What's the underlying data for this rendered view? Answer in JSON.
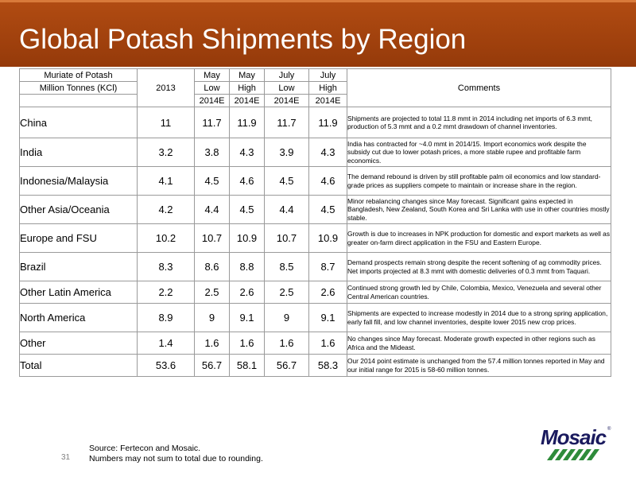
{
  "slide": {
    "title": "Global Potash Shipments by Region",
    "page_number": "31",
    "source_line": "Source:  Fertecon and Mosaic.",
    "note_line": "Numbers may not sum to total due to rounding.",
    "logo_text": "Mosaic",
    "logo_tm": "®"
  },
  "colors": {
    "header_bg": "#a2420e",
    "title_text": "#ffffff",
    "logo": "#1a1a5e",
    "logo_bars": "#2e8b3a"
  },
  "table": {
    "label1": "Muriate of Potash",
    "label2": "Million Tonnes (KCl)",
    "year_col": "2013",
    "comments_header": "Comments",
    "columns": [
      {
        "month": "May",
        "range": "Low",
        "est": "2014E"
      },
      {
        "month": "May",
        "range": "High",
        "est": "2014E"
      },
      {
        "month": "July",
        "range": "Low",
        "est": "2014E"
      },
      {
        "month": "July",
        "range": "High",
        "est": "2014E"
      }
    ],
    "rows": [
      {
        "region": "China",
        "v2013": "11",
        "v1": "11.7",
        "v2": "11.9",
        "v3": "11.7",
        "v4": "11.9",
        "comment": "Shipments are projected to total 11.8 mmt in 2014 including net imports of 6.3 mmt, production of 5.3 mmt and a 0.2 mmt drawdown of channel inventories."
      },
      {
        "region": "India",
        "v2013": "3.2",
        "v1": "3.8",
        "v2": "4.3",
        "v3": "3.9",
        "v4": "4.3",
        "comment": "India has contracted for ~4.0 mmt in 2014/15.  Import economics work despite the subsidy cut due to lower potash prices, a more stable rupee and profitable farm economics."
      },
      {
        "region": "Indonesia/Malaysia",
        "v2013": "4.1",
        "v1": "4.5",
        "v2": "4.6",
        "v3": "4.5",
        "v4": "4.6",
        "comment": "The demand rebound is driven by still profitable palm oil economics and low standard-grade prices as suppliers compete to maintain or increase share in the region."
      },
      {
        "region": "Other Asia/Oceania",
        "v2013": "4.2",
        "v1": "4.4",
        "v2": "4.5",
        "v3": "4.4",
        "v4": "4.5",
        "comment": "Minor rebalancing changes since May forecast.  Significant gains expected in Bangladesh, New Zealand, South Korea and Sri Lanka with use in other countries mostly stable."
      },
      {
        "region": "Europe and FSU",
        "v2013": "10.2",
        "v1": "10.7",
        "v2": "10.9",
        "v3": "10.7",
        "v4": "10.9",
        "comment": "Growth is due to increases in NPK production for domestic and export markets as well as greater on-farm direct application in the FSU and Eastern Europe."
      },
      {
        "region": "Brazil",
        "v2013": "8.3",
        "v1": "8.6",
        "v2": "8.8",
        "v3": "8.5",
        "v4": "8.7",
        "comment": "Demand prospects remain strong despite the recent softening of ag commodity prices.  Net imports projected at 8.3 mmt with domestic deliveries of 0.3 mmt from Taquari."
      },
      {
        "region": "Other Latin America",
        "v2013": "2.2",
        "v1": "2.5",
        "v2": "2.6",
        "v3": "2.5",
        "v4": "2.6",
        "comment": "Continued strong growth led by Chile, Colombia, Mexico, Venezuela and several other Central American countries."
      },
      {
        "region": "North America",
        "v2013": "8.9",
        "v1": "9",
        "v2": "9.1",
        "v3": "9",
        "v4": "9.1",
        "comment": "Shipments are expected to increase modestly in 2014 due to a strong spring application, early fall fill, and low channel inventories, despite lower 2015 new crop prices."
      },
      {
        "region": "Other",
        "v2013": "1.4",
        "v1": "1.6",
        "v2": "1.6",
        "v3": "1.6",
        "v4": "1.6",
        "comment": "No changes since May forecast.  Moderate growth expected in other regions such as Africa and the Mideast."
      },
      {
        "region": "Total",
        "v2013": "53.6",
        "v1": "56.7",
        "v2": "58.1",
        "v3": "56.7",
        "v4": "58.3",
        "comment": "Our 2014 point estimate is unchanged from the 57.4 million tonnes reported in May and our initial range for 2015 is 58-60 million tonnes."
      }
    ]
  }
}
